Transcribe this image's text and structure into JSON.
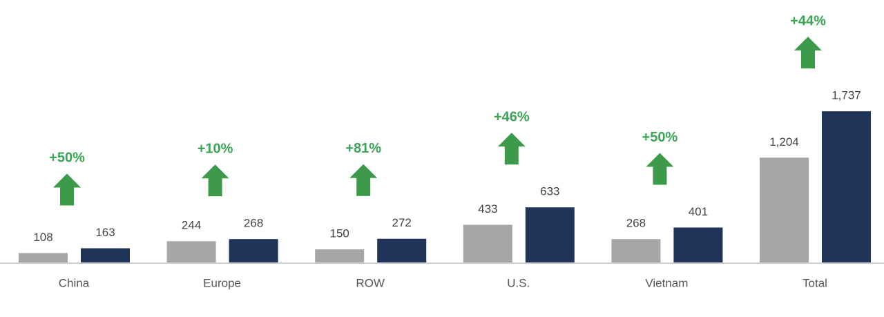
{
  "chart_data": {
    "type": "bar",
    "categories": [
      "China",
      "Europe",
      "ROW",
      "U.S.",
      "Vietnam",
      "Total"
    ],
    "series": [
      {
        "color": "#a6a6a6",
        "values": [
          108,
          244,
          150,
          433,
          268,
          1204
        ],
        "value_labels": [
          "108",
          "244",
          "150",
          "433",
          "268",
          "1,204"
        ]
      },
      {
        "color": "#1f3458",
        "values": [
          163,
          268,
          272,
          633,
          401,
          1737
        ],
        "value_labels": [
          "163",
          "268",
          "272",
          "633",
          "401",
          "1,737"
        ]
      }
    ],
    "annotations": [
      "+50%",
      "+10%",
      "+81%",
      "+46%",
      "+50%",
      "+44%"
    ],
    "annotation_color": "#3c9a4a"
  }
}
